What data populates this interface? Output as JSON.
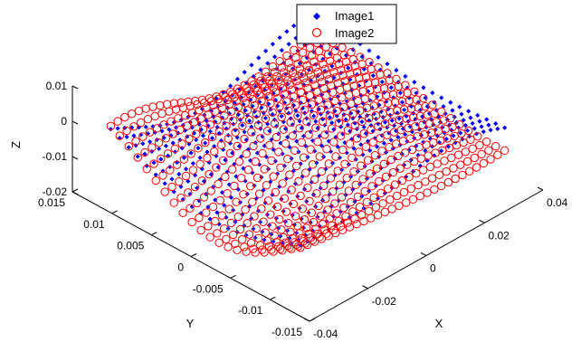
{
  "chart_data": {
    "type": "scatter",
    "projection": "3d",
    "title": "",
    "xlabel": "X",
    "ylabel": "Y",
    "zlabel": "Z",
    "xlim": [
      -0.04,
      0.04
    ],
    "ylim": [
      -0.015,
      0.015
    ],
    "zlim": [
      -0.02,
      0.01
    ],
    "x_ticks": [
      "-0.04",
      "-0.02",
      "0",
      "0.02",
      "0.04"
    ],
    "y_ticks": [
      "-0.015",
      "-0.01",
      "-0.005",
      "0",
      "0.005",
      "0.01",
      "0.015"
    ],
    "z_ticks": [
      "-0.02",
      "-0.01",
      "0",
      "0.01"
    ],
    "legend_position": "top-center",
    "series": [
      {
        "name": "Image1",
        "marker": "filled-diamond",
        "color": "#0000FF",
        "surface": {
          "x_range": [
            -0.035,
            0.035
          ],
          "y_range": [
            -0.012,
            0.012
          ],
          "z_base": -0.004,
          "z_amp": 0.009
        }
      },
      {
        "name": "Image2",
        "marker": "open-circle",
        "color": "#FF0000",
        "surface": {
          "x_range": [
            -0.035,
            0.035
          ],
          "y_range": [
            -0.012,
            0.012
          ],
          "z_base": -0.007,
          "z_amp": 0.01
        }
      }
    ]
  }
}
